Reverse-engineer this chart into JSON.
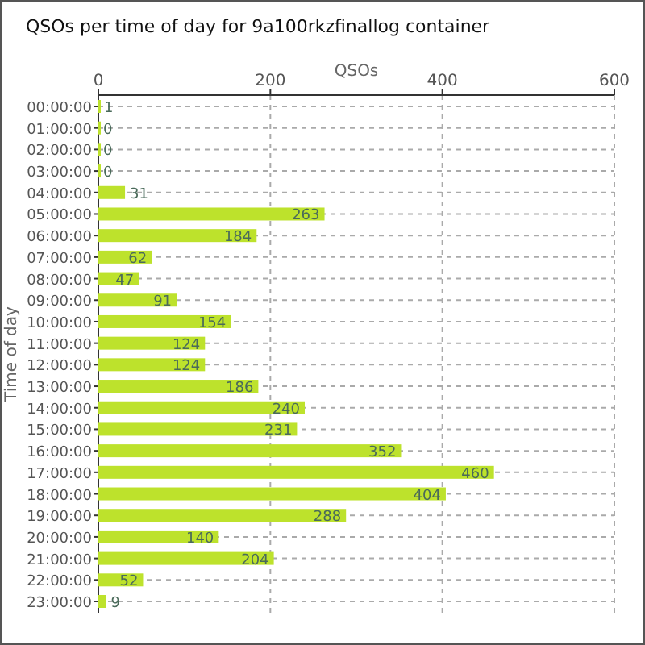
{
  "chart_data": {
    "type": "bar",
    "orientation": "horizontal",
    "title": "QSOs per time of day for 9a100rkzfinallog container",
    "xlabel": "QSOs",
    "ylabel": "Time of day",
    "categories": [
      "00:00:00",
      "01:00:00",
      "02:00:00",
      "03:00:00",
      "04:00:00",
      "05:00:00",
      "06:00:00",
      "07:00:00",
      "08:00:00",
      "09:00:00",
      "10:00:00",
      "11:00:00",
      "12:00:00",
      "13:00:00",
      "14:00:00",
      "15:00:00",
      "16:00:00",
      "17:00:00",
      "18:00:00",
      "19:00:00",
      "20:00:00",
      "21:00:00",
      "22:00:00",
      "23:00:00"
    ],
    "values": [
      1,
      0,
      0,
      0,
      31,
      263,
      184,
      62,
      47,
      91,
      154,
      124,
      124,
      186,
      240,
      231,
      352,
      460,
      404,
      288,
      140,
      204,
      52,
      9
    ],
    "color": "#bde22c",
    "xlim": [
      0,
      600
    ],
    "xticks": [
      0,
      200,
      400,
      600
    ],
    "grid": true,
    "data_labels": true
  }
}
